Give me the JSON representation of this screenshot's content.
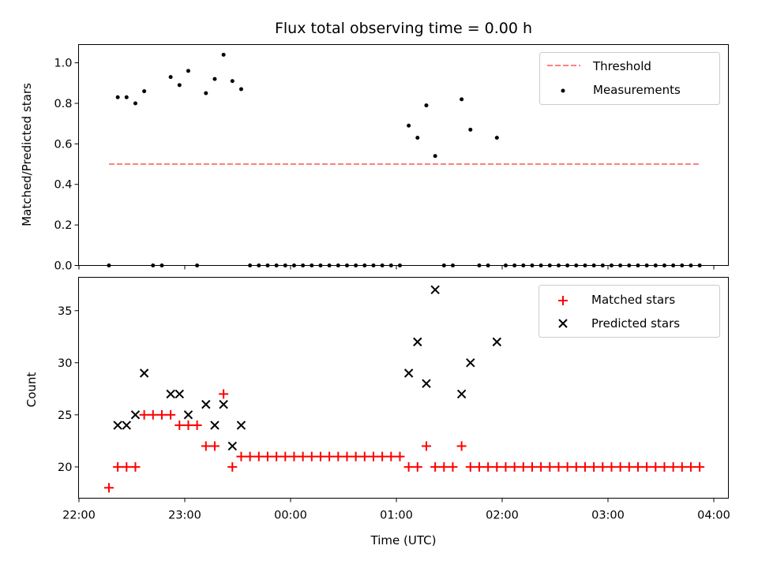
{
  "chart_data": [
    {
      "type": "scatter",
      "panel": "top",
      "title": "Flux total observing time = 0.00 h",
      "ylabel": "Matched/Predicted stars",
      "xlabel": "",
      "ylim": [
        0,
        1.09
      ],
      "yticks": [
        "0.0",
        "0.2",
        "0.4",
        "0.6",
        "0.8",
        "1.0"
      ],
      "legend": {
        "placement": "top-right",
        "entries": [
          "Threshold",
          "Measurements"
        ]
      },
      "threshold": {
        "name": "Threshold",
        "value": 0.5,
        "x_start": "22:17",
        "x_end": "03:52",
        "color": "#ff8080",
        "style": "dashed"
      },
      "series": [
        {
          "name": "Measurements",
          "marker": "dot",
          "color": "#000000",
          "points": [
            [
              "22:17",
              0.0
            ],
            [
              "22:22",
              0.83
            ],
            [
              "22:27",
              0.83
            ],
            [
              "22:32",
              0.8
            ],
            [
              "22:37",
              0.86
            ],
            [
              "22:42",
              0.0
            ],
            [
              "22:47",
              0.0
            ],
            [
              "22:52",
              0.93
            ],
            [
              "22:57",
              0.89
            ],
            [
              "23:02",
              0.96
            ],
            [
              "23:07",
              0.0
            ],
            [
              "23:12",
              0.85
            ],
            [
              "23:17",
              0.92
            ],
            [
              "23:22",
              1.04
            ],
            [
              "23:27",
              0.91
            ],
            [
              "23:32",
              0.87
            ],
            [
              "23:37",
              0.0
            ],
            [
              "23:42",
              0.0
            ],
            [
              "23:47",
              0.0
            ],
            [
              "23:52",
              0.0
            ],
            [
              "23:57",
              0.0
            ],
            [
              "00:02",
              0.0
            ],
            [
              "00:07",
              0.0
            ],
            [
              "00:12",
              0.0
            ],
            [
              "00:17",
              0.0
            ],
            [
              "00:22",
              0.0
            ],
            [
              "00:27",
              0.0
            ],
            [
              "00:32",
              0.0
            ],
            [
              "00:37",
              0.0
            ],
            [
              "00:42",
              0.0
            ],
            [
              "00:47",
              0.0
            ],
            [
              "00:52",
              0.0
            ],
            [
              "00:57",
              0.0
            ],
            [
              "01:02",
              0.0
            ],
            [
              "01:07",
              0.69
            ],
            [
              "01:12",
              0.63
            ],
            [
              "01:17",
              0.79
            ],
            [
              "01:22",
              0.54
            ],
            [
              "01:27",
              0.0
            ],
            [
              "01:32",
              0.0
            ],
            [
              "01:37",
              0.82
            ],
            [
              "01:42",
              0.67
            ],
            [
              "01:47",
              0.0
            ],
            [
              "01:52",
              0.0
            ],
            [
              "01:57",
              0.63
            ],
            [
              "02:02",
              0.0
            ],
            [
              "02:07",
              0.0
            ],
            [
              "02:12",
              0.0
            ],
            [
              "02:17",
              0.0
            ],
            [
              "02:22",
              0.0
            ],
            [
              "02:27",
              0.0
            ],
            [
              "02:32",
              0.0
            ],
            [
              "02:37",
              0.0
            ],
            [
              "02:42",
              0.0
            ],
            [
              "02:47",
              0.0
            ],
            [
              "02:52",
              0.0
            ],
            [
              "02:57",
              0.0
            ],
            [
              "03:02",
              0.0
            ],
            [
              "03:07",
              0.0
            ],
            [
              "03:12",
              0.0
            ],
            [
              "03:17",
              0.0
            ],
            [
              "03:22",
              0.0
            ],
            [
              "03:27",
              0.0
            ],
            [
              "03:32",
              0.0
            ],
            [
              "03:37",
              0.0
            ],
            [
              "03:42",
              0.0
            ],
            [
              "03:47",
              0.0
            ],
            [
              "03:52",
              0.0
            ]
          ]
        }
      ]
    },
    {
      "type": "scatter",
      "panel": "bottom",
      "title": "",
      "ylabel": "Count",
      "xlabel": "Time (UTC)",
      "ylim": [
        17,
        38.2
      ],
      "yticks": [
        "20",
        "25",
        "30",
        "35"
      ],
      "xticks": [
        "22:00",
        "23:00",
        "00:00",
        "01:00",
        "02:00",
        "03:00",
        "04:00"
      ],
      "xlim": [
        "22:00",
        "04:05"
      ],
      "legend": {
        "placement": "top-right",
        "entries": [
          "Matched stars",
          "Predicted stars"
        ]
      },
      "series": [
        {
          "name": "Matched stars",
          "marker": "plus",
          "color": "#ff0000",
          "points": [
            [
              "22:17",
              18
            ],
            [
              "22:22",
              20
            ],
            [
              "22:27",
              20
            ],
            [
              "22:32",
              20
            ],
            [
              "22:37",
              25
            ],
            [
              "22:42",
              25
            ],
            [
              "22:47",
              25
            ],
            [
              "22:52",
              25
            ],
            [
              "22:57",
              24
            ],
            [
              "23:02",
              24
            ],
            [
              "23:07",
              24
            ],
            [
              "23:12",
              22
            ],
            [
              "23:17",
              22
            ],
            [
              "23:22",
              27
            ],
            [
              "23:27",
              20
            ],
            [
              "23:32",
              21
            ],
            [
              "23:37",
              21
            ],
            [
              "23:42",
              21
            ],
            [
              "23:47",
              21
            ],
            [
              "23:52",
              21
            ],
            [
              "23:57",
              21
            ],
            [
              "00:02",
              21
            ],
            [
              "00:07",
              21
            ],
            [
              "00:12",
              21
            ],
            [
              "00:17",
              21
            ],
            [
              "00:22",
              21
            ],
            [
              "00:27",
              21
            ],
            [
              "00:32",
              21
            ],
            [
              "00:37",
              21
            ],
            [
              "00:42",
              21
            ],
            [
              "00:47",
              21
            ],
            [
              "00:52",
              21
            ],
            [
              "00:57",
              21
            ],
            [
              "01:02",
              21
            ],
            [
              "01:07",
              20
            ],
            [
              "01:12",
              20
            ],
            [
              "01:17",
              22
            ],
            [
              "01:22",
              20
            ],
            [
              "01:27",
              20
            ],
            [
              "01:32",
              20
            ],
            [
              "01:37",
              22
            ],
            [
              "01:42",
              20
            ],
            [
              "01:47",
              20
            ],
            [
              "01:52",
              20
            ],
            [
              "01:57",
              20
            ],
            [
              "02:02",
              20
            ],
            [
              "02:07",
              20
            ],
            [
              "02:12",
              20
            ],
            [
              "02:17",
              20
            ],
            [
              "02:22",
              20
            ],
            [
              "02:27",
              20
            ],
            [
              "02:32",
              20
            ],
            [
              "02:37",
              20
            ],
            [
              "02:42",
              20
            ],
            [
              "02:47",
              20
            ],
            [
              "02:52",
              20
            ],
            [
              "02:57",
              20
            ],
            [
              "03:02",
              20
            ],
            [
              "03:07",
              20
            ],
            [
              "03:12",
              20
            ],
            [
              "03:17",
              20
            ],
            [
              "03:22",
              20
            ],
            [
              "03:27",
              20
            ],
            [
              "03:32",
              20
            ],
            [
              "03:37",
              20
            ],
            [
              "03:42",
              20
            ],
            [
              "03:47",
              20
            ],
            [
              "03:52",
              20
            ]
          ]
        },
        {
          "name": "Predicted stars",
          "marker": "x",
          "color": "#000000",
          "points": [
            [
              "22:22",
              24
            ],
            [
              "22:27",
              24
            ],
            [
              "22:32",
              25
            ],
            [
              "22:37",
              29
            ],
            [
              "22:52",
              27
            ],
            [
              "22:57",
              27
            ],
            [
              "23:02",
              25
            ],
            [
              "23:12",
              26
            ],
            [
              "23:17",
              24
            ],
            [
              "23:22",
              26
            ],
            [
              "23:27",
              22
            ],
            [
              "23:32",
              24
            ],
            [
              "01:07",
              29
            ],
            [
              "01:12",
              32
            ],
            [
              "01:17",
              28
            ],
            [
              "01:22",
              37
            ],
            [
              "01:37",
              27
            ],
            [
              "01:42",
              30
            ],
            [
              "01:57",
              32
            ]
          ]
        }
      ]
    }
  ]
}
